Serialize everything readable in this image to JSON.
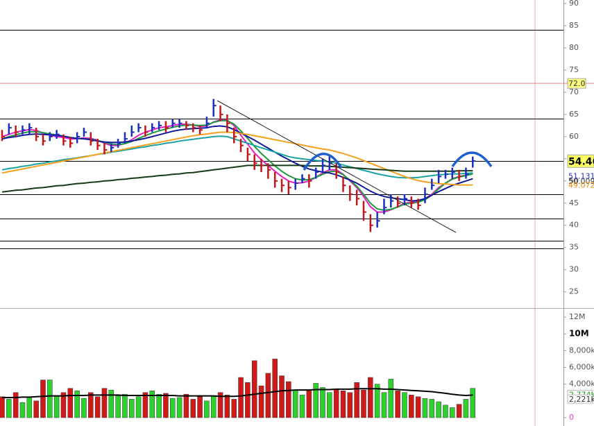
{
  "chart_data": [
    {
      "type": "ohlc",
      "close": [
        60,
        62,
        61,
        61.5,
        62,
        60,
        59,
        60,
        60.5,
        59,
        58.5,
        60,
        61,
        59,
        58,
        57,
        57.5,
        58.5,
        59.5,
        61,
        62,
        61,
        62,
        62.5,
        62,
        63,
        63,
        62.5,
        62,
        61.5,
        63,
        67,
        65,
        63,
        60,
        58,
        56,
        54,
        53.5,
        52.5,
        50,
        49,
        48.5,
        49.5,
        50.5,
        50,
        52,
        53.5,
        54,
        52,
        49,
        47,
        46,
        43,
        40,
        41,
        44,
        45.5,
        45,
        46,
        45,
        44.5,
        47,
        49,
        51,
        51.5,
        52,
        51,
        51.5,
        54.5
      ],
      "high": [
        61.5,
        63,
        62.5,
        62.5,
        63,
        62,
        60.5,
        61,
        61.5,
        60.5,
        60,
        61,
        62,
        61,
        59.5,
        58.5,
        58.5,
        59.5,
        61,
        62.5,
        63,
        62.5,
        63,
        63.5,
        63.5,
        64,
        64,
        63.5,
        63,
        62.5,
        64.5,
        68.5,
        67,
        65,
        62,
        59.5,
        57.5,
        56,
        55,
        54,
        52,
        50.5,
        50,
        50.5,
        51.5,
        51.5,
        53,
        55,
        55.5,
        54,
        51,
        49,
        48,
        45.5,
        42.5,
        43,
        46,
        47,
        46.5,
        47,
        46.5,
        46,
        48.5,
        50.5,
        52.5,
        52.5,
        53,
        52.5,
        53,
        55.5
      ],
      "low": [
        59,
        60.5,
        60,
        60.5,
        60.5,
        59,
        58,
        59,
        59.5,
        58,
        57.5,
        58.5,
        60,
        58,
        57,
        56,
        56.5,
        57.5,
        58.5,
        60,
        61,
        60,
        61,
        61.5,
        61,
        62,
        62,
        61.5,
        61,
        60.5,
        62,
        64.5,
        63.5,
        61,
        58.5,
        56.5,
        54.5,
        52.5,
        52,
        50.5,
        48.5,
        47.5,
        47,
        48,
        49.5,
        48.5,
        50.5,
        52,
        52.5,
        50.5,
        47.5,
        45.5,
        44.5,
        41,
        38.5,
        39.5,
        42.5,
        44,
        44,
        44.5,
        44,
        43.5,
        45,
        48,
        49.5,
        50.5,
        50.5,
        50,
        50.5,
        53
      ],
      "up_color": "#1a2fbf",
      "down_color": "#c0171a",
      "series": [
        {
          "color": "#e61ec8",
          "values": [
            60,
            60.5,
            61,
            61.3,
            61.6,
            61.4,
            60.8,
            60.3,
            60,
            59.8,
            59.5,
            59.5,
            59.7,
            59.6,
            59.2,
            58.5,
            58,
            58,
            58.5,
            59.3,
            60.3,
            61,
            61.5,
            62,
            62.2,
            62.5,
            62.8,
            62.8,
            62.6,
            62.3,
            62.4,
            63.3,
            63.8,
            63.7,
            62.5,
            60.3,
            58.3,
            56.3,
            54.8,
            53.5,
            52.2,
            51,
            50,
            49.5,
            49.6,
            50,
            50.8,
            51.8,
            52.5,
            52.5,
            51.5,
            50,
            48.5,
            46.5,
            44.2,
            43,
            43,
            43.5,
            44.2,
            45,
            45.2,
            45.4,
            46,
            47,
            48.5,
            49.5,
            50.5,
            51,
            51.3,
            51.8
          ]
        },
        {
          "color": "#1e9a3c",
          "values": [
            59.5,
            60,
            60.4,
            60.8,
            61.1,
            61.1,
            60.9,
            60.6,
            60.4,
            60.1,
            59.8,
            59.6,
            59.5,
            59.4,
            59.1,
            58.7,
            58.3,
            58.2,
            58.4,
            58.9,
            59.6,
            60.2,
            60.8,
            61.3,
            61.7,
            62.1,
            62.4,
            62.6,
            62.6,
            62.5,
            62.6,
            63.2,
            63.6,
            63.6,
            62.8,
            61.3,
            59.6,
            57.8,
            56.2,
            54.8,
            53.4,
            52.2,
            51.2,
            50.5,
            50.2,
            50.3,
            50.8,
            51.5,
            52.1,
            52.2,
            51.4,
            50.2,
            48.8,
            47,
            45,
            43.7,
            43.4,
            43.6,
            44.1,
            44.8,
            45,
            45.2,
            45.8,
            46.8,
            48.2,
            49.5,
            50.4,
            50.9,
            51.2,
            51.6
          ]
        },
        {
          "color": "#10189a",
          "values": [
            59.5,
            59.8,
            60,
            60.3,
            60.5,
            60.6,
            60.5,
            60.4,
            60.3,
            60.1,
            59.8,
            59.6,
            59.5,
            59.3,
            59,
            58.8,
            58.7,
            58.7,
            58.8,
            59,
            59.3,
            59.6,
            60,
            60.4,
            60.8,
            61.2,
            61.5,
            61.7,
            61.8,
            61.9,
            62,
            62.3,
            62.4,
            62.2,
            61.6,
            60.8,
            60,
            59.2,
            58.3,
            57.4,
            56.5,
            55.6,
            54.8,
            54,
            53.3,
            52.7,
            52.3,
            52,
            51.8,
            51.4,
            50.8,
            50.2,
            49.5,
            48.6,
            47.7,
            47,
            46.5,
            46.2,
            46,
            45.8,
            45.5,
            45.6,
            46,
            46.8,
            47.6,
            48.3,
            49,
            49.5,
            50,
            50.5
          ]
        },
        {
          "color": "#1aa3a3",
          "values": [
            52.5,
            52.8,
            53,
            53.3,
            53.5,
            53.8,
            54,
            54.3,
            54.5,
            54.8,
            55,
            55.2,
            55.5,
            55.7,
            56,
            56.2,
            56.5,
            56.7,
            57,
            57.2,
            57.5,
            57.7,
            58,
            58.2,
            58.5,
            58.7,
            59,
            59.2,
            59.4,
            59.6,
            59.8,
            60,
            60.1,
            60,
            59.5,
            59,
            58.5,
            58,
            57.5,
            57,
            56.5,
            56,
            55.5,
            55.2,
            55,
            54.8,
            54.6,
            54.5,
            54.3,
            54,
            53.6,
            53.2,
            52.8,
            52.4,
            52,
            51.6,
            51.3,
            51,
            50.8,
            50.7,
            50.7,
            50.8,
            51,
            51.2,
            51.4,
            51.5,
            51.6,
            51.6,
            51.7,
            51.8
          ]
        },
        {
          "color": "#f5a01e",
          "values": [
            51.8,
            52.1,
            52.4,
            52.7,
            53,
            53.3,
            53.6,
            53.9,
            54.2,
            54.5,
            54.8,
            55.1,
            55.4,
            55.7,
            56,
            56.3,
            56.6,
            56.9,
            57.2,
            57.5,
            57.8,
            58.1,
            58.4,
            58.7,
            59,
            59.3,
            59.6,
            59.9,
            60.2,
            60.4,
            60.6,
            60.8,
            61,
            61,
            60.9,
            60.7,
            60.5,
            60.2,
            59.9,
            59.6,
            59.3,
            59,
            58.7,
            58.4,
            58.1,
            57.8,
            57.5,
            57.2,
            57,
            56.6,
            56.2,
            55.7,
            55.2,
            54.6,
            54,
            53.4,
            52.8,
            52.2,
            51.6,
            51,
            50.5,
            50.1,
            49.8,
            49.6,
            49.4,
            49.3,
            49.2,
            49.1,
            49.1,
            49.1
          ]
        },
        {
          "color": "#153a15",
          "values": [
            47.5,
            47.7,
            47.9,
            48,
            48.2,
            48.4,
            48.5,
            48.7,
            48.9,
            49,
            49.2,
            49.4,
            49.5,
            49.7,
            49.8,
            50,
            50.1,
            50.3,
            50.4,
            50.6,
            50.7,
            50.9,
            51,
            51.2,
            51.3,
            51.5,
            51.6,
            51.8,
            51.9,
            52.1,
            52.3,
            52.5,
            52.7,
            52.9,
            53.1,
            53.3,
            53.5,
            53.5,
            53.5,
            53.5,
            53.5,
            53.5,
            53.5,
            53.5,
            53.5,
            53.4,
            53.4,
            53.4,
            53.3,
            53.2,
            53.1,
            53,
            52.9,
            52.8,
            52.7,
            52.6,
            52.5,
            52.4,
            52.3,
            52.2,
            52.2,
            52.2,
            52.2,
            52.2,
            52.2,
            52.2,
            52.2,
            52.3,
            52.3,
            52.3
          ]
        }
      ],
      "ylim": [
        21.5,
        90.8
      ],
      "yticks": [
        25,
        30,
        35,
        40,
        45,
        50,
        55,
        60,
        65,
        70,
        75,
        80,
        85,
        90
      ],
      "levels": [
        84,
        64,
        54.46,
        47,
        41.5,
        36.5,
        34.8
      ],
      "price_labels": [
        {
          "value": 72,
          "label": "72.0",
          "color": "#333333",
          "background": "#ffff80",
          "line": "#f08080"
        },
        {
          "value": 54.46,
          "color": "#000000",
          "background": "#ffff60"
        },
        {
          "value": 51.131,
          "color": "#2233cc"
        },
        {
          "value": 50.009,
          "color": "#444444"
        },
        {
          "value": 49.072,
          "color": "#e88a00"
        }
      ]
    },
    {
      "type": "bar",
      "values": [
        2500000,
        2200000,
        3000000,
        1800000,
        2400000,
        2000000,
        4500000,
        4500000,
        2600000,
        3000000,
        3500000,
        3200000,
        2300000,
        3000000,
        2500000,
        3500000,
        3300000,
        2600000,
        2800000,
        2200000,
        2500000,
        3000000,
        3200000,
        2800000,
        2900000,
        2300000,
        2400000,
        2800000,
        2200000,
        2500000,
        2000000,
        2600000,
        3000000,
        2700000,
        2200000,
        4800000,
        4200000,
        6800000,
        3800000,
        5300000,
        7000000,
        5000000,
        4300000,
        3300000,
        2700000,
        3300000,
        4100000,
        3600000,
        3000000,
        3400000,
        3200000,
        3000000,
        4200000,
        3300000,
        4800000,
        4000000,
        3000000,
        4600000,
        3200000,
        3000000,
        2700000,
        2500000,
        2300000,
        2200000,
        1900000,
        1500000,
        1200000,
        1600000,
        2200000,
        3500000
      ],
      "up_color": "#2ed02e",
      "down_color": "#d01a1a",
      "series": [
        {
          "color": "#000000",
          "values": [
            2400000,
            2400000,
            2400000,
            2450000,
            2450000,
            2500000,
            2550000,
            2600000,
            2600000,
            2600000,
            2650000,
            2650000,
            2650000,
            2700000,
            2700000,
            2700000,
            2700000,
            2700000,
            2650000,
            2650000,
            2650000,
            2650000,
            2650000,
            2650000,
            2650000,
            2650000,
            2600000,
            2600000,
            2600000,
            2600000,
            2600000,
            2600000,
            2550000,
            2550000,
            2550000,
            2600000,
            2700000,
            2800000,
            2900000,
            3000000,
            3100000,
            3200000,
            3250000,
            3300000,
            3300000,
            3300000,
            3350000,
            3350000,
            3350000,
            3400000,
            3400000,
            3400000,
            3450000,
            3450000,
            3450000,
            3450000,
            3400000,
            3400000,
            3350000,
            3300000,
            3250000,
            3200000,
            3150000,
            3100000,
            3000000,
            2900000,
            2800000,
            2700000,
            2650000,
            2700000
          ]
        }
      ],
      "ylim": [
        -500000,
        13000000
      ],
      "yticks": [
        {
          "value": 0,
          "label": "0"
        },
        {
          "value": 4000000,
          "label": "4,000k"
        },
        {
          "value": 6000000,
          "label": "6,000k"
        },
        {
          "value": 8000000,
          "label": "8,000k"
        },
        {
          "value": 10000000,
          "label": "10M",
          "bold": true
        },
        {
          "value": 12000000,
          "label": "12M"
        }
      ],
      "value_labels": [
        {
          "value": 2774000,
          "label": "2,774k",
          "color": "#1a9a1a"
        },
        {
          "value": 2221000,
          "label": "2,221k",
          "color": "#333333"
        }
      ]
    }
  ]
}
